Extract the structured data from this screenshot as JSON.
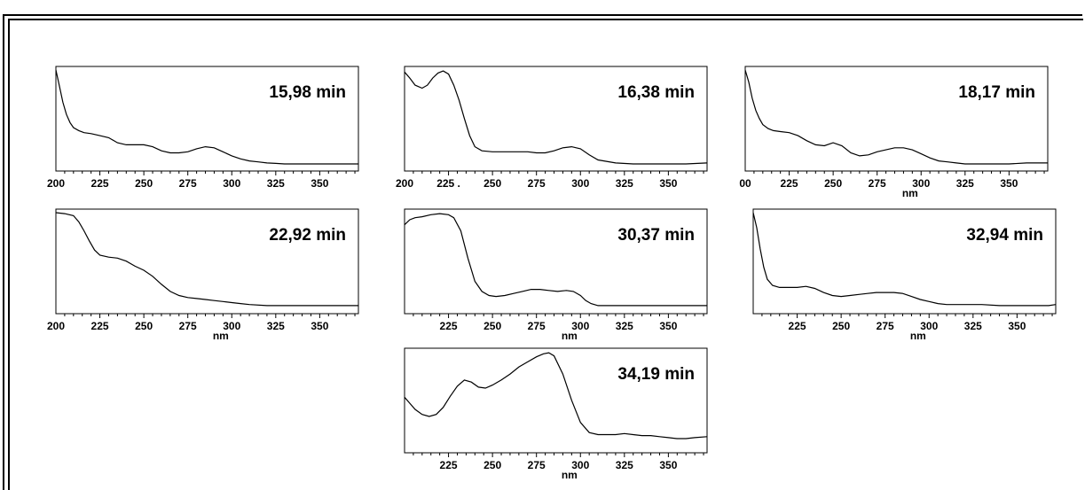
{
  "chart_data": [
    {
      "type": "line",
      "title": "15,98 min",
      "xlabel": "",
      "xticks": [
        "200",
        "225",
        "250",
        "275",
        "300",
        "325",
        "350"
      ],
      "xlim": [
        200,
        372
      ],
      "ylim": [
        0,
        1
      ],
      "x": [
        200,
        202,
        204,
        206,
        208,
        210,
        213,
        216,
        220,
        225,
        230,
        235,
        240,
        245,
        250,
        255,
        260,
        265,
        270,
        275,
        280,
        285,
        290,
        295,
        300,
        305,
        310,
        315,
        320,
        325,
        330,
        340,
        350,
        360,
        372
      ],
      "y": [
        1.0,
        0.84,
        0.68,
        0.56,
        0.48,
        0.43,
        0.4,
        0.38,
        0.37,
        0.35,
        0.33,
        0.28,
        0.26,
        0.26,
        0.26,
        0.24,
        0.2,
        0.18,
        0.18,
        0.19,
        0.22,
        0.24,
        0.23,
        0.19,
        0.15,
        0.12,
        0.1,
        0.09,
        0.08,
        0.075,
        0.07,
        0.07,
        0.07,
        0.07,
        0.07
      ]
    },
    {
      "type": "line",
      "title": "16,38 min",
      "xlabel": "",
      "xticks": [
        "200",
        "225",
        "250",
        "275",
        "300",
        "325",
        "350"
      ],
      "xticks_display": [
        "200",
        "225 .",
        "250",
        "275",
        "300",
        "325",
        "350"
      ],
      "xlim": [
        200,
        372
      ],
      "ylim": [
        0,
        1
      ],
      "x": [
        200,
        203,
        206,
        210,
        213,
        216,
        219,
        222,
        225,
        228,
        231,
        234,
        237,
        240,
        244,
        250,
        255,
        260,
        265,
        270,
        275,
        280,
        285,
        290,
        295,
        300,
        305,
        310,
        320,
        330,
        340,
        350,
        360,
        372
      ],
      "y": [
        0.98,
        0.92,
        0.85,
        0.82,
        0.85,
        0.92,
        0.97,
        0.99,
        0.96,
        0.85,
        0.7,
        0.52,
        0.35,
        0.24,
        0.2,
        0.19,
        0.19,
        0.19,
        0.19,
        0.19,
        0.18,
        0.18,
        0.2,
        0.23,
        0.24,
        0.22,
        0.16,
        0.11,
        0.08,
        0.07,
        0.07,
        0.07,
        0.07,
        0.08
      ]
    },
    {
      "type": "line",
      "title": "18,17 min",
      "xlabel": "nm",
      "xticks": [
        "00",
        "225",
        "250",
        "275",
        "300",
        "325",
        "350"
      ],
      "xlim": [
        200,
        372
      ],
      "ylim": [
        0,
        1
      ],
      "x": [
        200,
        202,
        204,
        206,
        208,
        210,
        213,
        216,
        220,
        225,
        230,
        235,
        240,
        245,
        250,
        255,
        260,
        265,
        270,
        275,
        280,
        285,
        290,
        295,
        300,
        305,
        310,
        315,
        320,
        325,
        330,
        340,
        350,
        360,
        372
      ],
      "y": [
        1.0,
        0.88,
        0.72,
        0.6,
        0.52,
        0.46,
        0.42,
        0.4,
        0.39,
        0.38,
        0.35,
        0.3,
        0.26,
        0.25,
        0.28,
        0.25,
        0.18,
        0.15,
        0.16,
        0.19,
        0.21,
        0.23,
        0.23,
        0.21,
        0.17,
        0.13,
        0.1,
        0.09,
        0.08,
        0.07,
        0.07,
        0.07,
        0.07,
        0.08,
        0.08
      ]
    },
    {
      "type": "line",
      "title": "22,92 min",
      "xlabel": "nm",
      "xticks": [
        "200",
        "225",
        "250",
        "275",
        "300",
        "325",
        "350"
      ],
      "xlim": [
        200,
        372
      ],
      "ylim": [
        0,
        1
      ],
      "x": [
        200,
        205,
        210,
        213,
        216,
        219,
        222,
        225,
        230,
        235,
        240,
        245,
        250,
        255,
        260,
        265,
        270,
        275,
        280,
        285,
        290,
        295,
        300,
        305,
        310,
        320,
        330,
        340,
        350,
        360,
        372
      ],
      "y": [
        1.0,
        0.99,
        0.97,
        0.91,
        0.82,
        0.72,
        0.63,
        0.58,
        0.56,
        0.55,
        0.52,
        0.47,
        0.43,
        0.37,
        0.29,
        0.22,
        0.18,
        0.16,
        0.15,
        0.14,
        0.13,
        0.12,
        0.11,
        0.1,
        0.09,
        0.08,
        0.08,
        0.08,
        0.08,
        0.08,
        0.08
      ]
    },
    {
      "type": "line",
      "title": "30,37 min",
      "xlabel": "nm",
      "xticks": [
        "225",
        "250",
        "275",
        "300",
        "325",
        "350"
      ],
      "xlim": [
        200,
        372
      ],
      "ylim": [
        0,
        1
      ],
      "x": [
        200,
        203,
        206,
        210,
        215,
        220,
        225,
        228,
        232,
        236,
        240,
        244,
        248,
        252,
        257,
        262,
        267,
        272,
        277,
        282,
        287,
        292,
        296,
        300,
        303,
        306,
        310,
        320,
        330,
        340,
        350,
        360,
        372
      ],
      "y": [
        0.88,
        0.93,
        0.95,
        0.96,
        0.98,
        0.99,
        0.98,
        0.95,
        0.82,
        0.55,
        0.32,
        0.22,
        0.18,
        0.17,
        0.18,
        0.2,
        0.22,
        0.24,
        0.24,
        0.23,
        0.22,
        0.23,
        0.22,
        0.18,
        0.13,
        0.1,
        0.08,
        0.08,
        0.08,
        0.08,
        0.08,
        0.08,
        0.08
      ]
    },
    {
      "type": "line",
      "title": "32,94 min",
      "xlabel": "nm",
      "xticks": [
        "225",
        "250",
        "275",
        "300",
        "325",
        "350"
      ],
      "xlim": [
        200,
        372
      ],
      "ylim": [
        0,
        1
      ],
      "x": [
        200,
        202,
        204,
        206,
        208,
        211,
        215,
        220,
        225,
        230,
        235,
        240,
        245,
        250,
        255,
        260,
        265,
        270,
        275,
        280,
        285,
        290,
        295,
        300,
        305,
        310,
        320,
        330,
        340,
        350,
        360,
        368,
        372
      ],
      "y": [
        1.0,
        0.85,
        0.64,
        0.46,
        0.34,
        0.28,
        0.26,
        0.26,
        0.26,
        0.27,
        0.25,
        0.21,
        0.18,
        0.17,
        0.18,
        0.19,
        0.2,
        0.21,
        0.21,
        0.21,
        0.2,
        0.17,
        0.14,
        0.12,
        0.1,
        0.09,
        0.09,
        0.09,
        0.08,
        0.08,
        0.08,
        0.08,
        0.09
      ]
    },
    {
      "type": "line",
      "title": "34,19 min",
      "xlabel": "nm",
      "xticks": [
        "225",
        "250",
        "275",
        "300",
        "325",
        "350"
      ],
      "xlim": [
        200,
        372
      ],
      "ylim": [
        0,
        1
      ],
      "x": [
        200,
        203,
        206,
        210,
        214,
        218,
        222,
        226,
        230,
        234,
        238,
        242,
        246,
        250,
        255,
        260,
        265,
        270,
        275,
        279,
        282,
        285,
        290,
        295,
        300,
        305,
        310,
        315,
        320,
        325,
        330,
        335,
        340,
        345,
        350,
        355,
        360,
        365,
        372
      ],
      "y": [
        0.55,
        0.49,
        0.43,
        0.38,
        0.36,
        0.38,
        0.45,
        0.56,
        0.66,
        0.72,
        0.7,
        0.65,
        0.64,
        0.67,
        0.72,
        0.78,
        0.85,
        0.9,
        0.95,
        0.98,
        0.99,
        0.96,
        0.78,
        0.52,
        0.3,
        0.2,
        0.18,
        0.18,
        0.18,
        0.19,
        0.18,
        0.17,
        0.17,
        0.16,
        0.15,
        0.14,
        0.14,
        0.15,
        0.16
      ]
    }
  ],
  "colors": {
    "line": "#000000",
    "background": "#ffffff"
  }
}
